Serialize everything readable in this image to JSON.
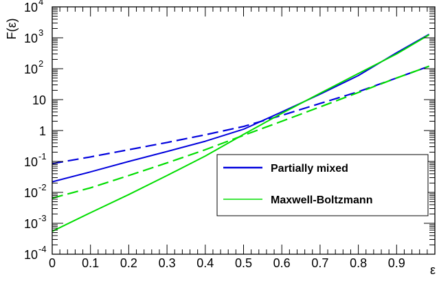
{
  "chart_data": {
    "type": "line",
    "xlabel": "ε",
    "ylabel": "F(ε)",
    "xlim": [
      0,
      1
    ],
    "ylim": [
      0.0001,
      10000
    ],
    "yscale": "log",
    "x_ticks": [
      0,
      0.1,
      0.2,
      0.3,
      0.4,
      0.5,
      0.6,
      0.7,
      0.8,
      0.9
    ],
    "x_tick_labels": [
      "0",
      "0.1",
      "0.2",
      "0.3",
      "0.4",
      "0.5",
      "0.6",
      "0.7",
      "0.8",
      "0.9"
    ],
    "y_ticks": [
      0.0001,
      0.001,
      0.01,
      0.1,
      1,
      10,
      100,
      1000,
      10000
    ],
    "y_tick_labels": [
      {
        "base": "10",
        "exp": "-4"
      },
      {
        "base": "10",
        "exp": "-3"
      },
      {
        "base": "10",
        "exp": "-2"
      },
      {
        "base": "10",
        "exp": "-1"
      },
      {
        "base": "1",
        "exp": ""
      },
      {
        "base": "10",
        "exp": ""
      },
      {
        "base": "10",
        "exp": "2"
      },
      {
        "base": "10",
        "exp": "3"
      },
      {
        "base": "10",
        "exp": "4"
      }
    ],
    "grid": false,
    "legend_position": "bottom-right",
    "legend": [
      {
        "label": "Partially mixed",
        "color": "#0000dd",
        "style": "solid"
      },
      {
        "label": "Maxwell-Boltzmann",
        "color": "#00dd00",
        "style": "solid"
      }
    ],
    "series": [
      {
        "color": "#0000dd",
        "style": "solid",
        "x": [
          0,
          0.1,
          0.2,
          0.3,
          0.4,
          0.5,
          0.6,
          0.7,
          0.8,
          0.9,
          0.985
        ],
        "y": [
          0.022,
          0.046,
          0.1,
          0.21,
          0.45,
          1.1,
          4.0,
          15,
          60,
          330,
          1300
        ]
      },
      {
        "color": "#0000dd",
        "style": "dashed",
        "x": [
          0,
          0.1,
          0.2,
          0.3,
          0.4,
          0.5,
          0.6,
          0.7,
          0.8,
          0.9,
          0.985
        ],
        "y": [
          0.085,
          0.14,
          0.24,
          0.41,
          0.73,
          1.35,
          3.1,
          7.5,
          18,
          50,
          120
        ]
      },
      {
        "color": "#00dd00",
        "style": "solid",
        "x": [
          0,
          0.1,
          0.2,
          0.3,
          0.4,
          0.5,
          0.6,
          0.7,
          0.8,
          0.9,
          0.985
        ],
        "y": [
          0.00055,
          0.0022,
          0.0085,
          0.035,
          0.15,
          0.75,
          3.6,
          16,
          70,
          300,
          1250
        ]
      },
      {
        "color": "#00dd00",
        "style": "dashed",
        "x": [
          0,
          0.1,
          0.2,
          0.3,
          0.4,
          0.5,
          0.6,
          0.7,
          0.8,
          0.9,
          0.985
        ],
        "y": [
          0.0065,
          0.014,
          0.035,
          0.09,
          0.24,
          0.7,
          2.0,
          5.8,
          17,
          50,
          120
        ]
      }
    ]
  }
}
